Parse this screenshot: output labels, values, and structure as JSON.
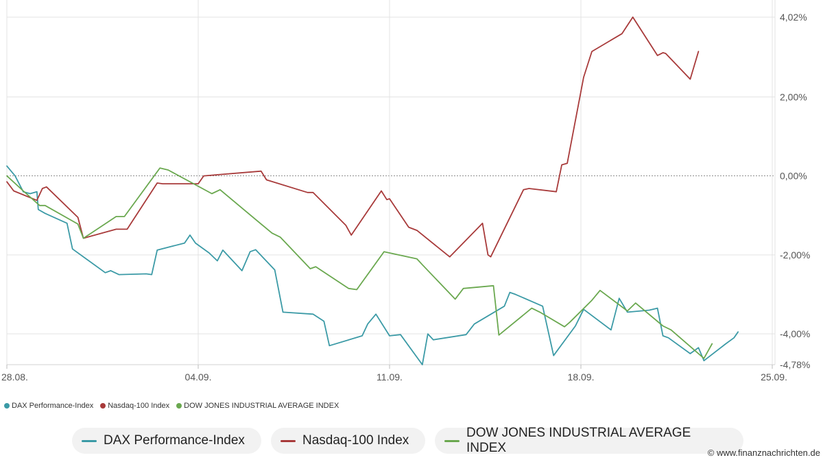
{
  "colors": {
    "dax": "#3b9aa6",
    "nasdaq": "#a83a3a",
    "dow": "#6aa84f",
    "grid": "#e3e3e3",
    "axis_text": "#555555"
  },
  "legend_small": [
    {
      "label": "DAX Performance-Index",
      "color": "#3b9aa6"
    },
    {
      "label": "Nasdaq-100 Index",
      "color": "#a83a3a"
    },
    {
      "label": "DOW JONES INDUSTRIAL AVERAGE INDEX",
      "color": "#6aa84f"
    }
  ],
  "legend_pills": [
    {
      "label": "DAX Performance-Index",
      "color": "#3b9aa6"
    },
    {
      "label": "Nasdaq-100 Index",
      "color": "#a83a3a"
    },
    {
      "label": "DOW JONES INDUSTRIAL AVERAGE INDEX",
      "color": "#6aa84f"
    }
  ],
  "credit": "© www.finanznachrichten.de",
  "chart_data": {
    "type": "line",
    "title": "",
    "xlabel": "",
    "ylabel": "",
    "grid": true,
    "legend_position": "bottom",
    "x_range": [
      0,
      28.1
    ],
    "ylim": [
      -4.78,
      4.02
    ],
    "y_ticks": [
      {
        "value": 4.02,
        "label": "4,02%"
      },
      {
        "value": 2.0,
        "label": "2,00%"
      },
      {
        "value": 0.0,
        "label": "0,00%"
      },
      {
        "value": -2.0,
        "label": "-2,00%"
      },
      {
        "value": -4.0,
        "label": "-4,00%"
      },
      {
        "value": -4.78,
        "label": "-4,78%"
      }
    ],
    "x_ticks": [
      {
        "value": 0,
        "label": "28.08."
      },
      {
        "value": 7,
        "label": "04.09."
      },
      {
        "value": 14,
        "label": "11.09."
      },
      {
        "value": 21,
        "label": "18.09."
      },
      {
        "value": 28,
        "label": "25.09."
      }
    ],
    "series": [
      {
        "name": "DAX Performance-Index",
        "color": "#3b9aa6",
        "points": [
          [
            0,
            0.25
          ],
          [
            0.3,
            0.0
          ],
          [
            0.6,
            -0.4
          ],
          [
            0.85,
            -0.45
          ],
          [
            1.1,
            -0.4
          ],
          [
            1.15,
            -0.85
          ],
          [
            1.4,
            -0.95
          ],
          [
            2.2,
            -1.2
          ],
          [
            2.4,
            -1.85
          ],
          [
            3.6,
            -2.45
          ],
          [
            3.8,
            -2.4
          ],
          [
            4.1,
            -2.5
          ],
          [
            5.1,
            -2.48
          ],
          [
            5.3,
            -2.5
          ],
          [
            5.5,
            -1.88
          ],
          [
            6.5,
            -1.7
          ],
          [
            6.7,
            -1.5
          ],
          [
            6.9,
            -1.7
          ],
          [
            7.4,
            -1.95
          ],
          [
            7.7,
            -2.15
          ],
          [
            7.9,
            -1.88
          ],
          [
            8.6,
            -2.4
          ],
          [
            8.9,
            -1.92
          ],
          [
            9.1,
            -1.87
          ],
          [
            9.8,
            -2.38
          ],
          [
            10.1,
            -3.45
          ],
          [
            11.2,
            -3.5
          ],
          [
            11.6,
            -3.68
          ],
          [
            11.8,
            -4.3
          ],
          [
            13.0,
            -4.05
          ],
          [
            13.2,
            -3.75
          ],
          [
            13.5,
            -3.5
          ],
          [
            14.0,
            -4.05
          ],
          [
            14.4,
            -4.02
          ],
          [
            15.2,
            -4.78
          ],
          [
            15.4,
            -4.0
          ],
          [
            15.6,
            -4.15
          ],
          [
            16.8,
            -4.02
          ],
          [
            17.1,
            -3.75
          ],
          [
            18.2,
            -3.3
          ],
          [
            18.4,
            -2.95
          ],
          [
            18.6,
            -3.0
          ],
          [
            19.6,
            -3.3
          ],
          [
            20.0,
            -4.55
          ],
          [
            20.8,
            -3.8
          ],
          [
            21.1,
            -3.38
          ],
          [
            22.1,
            -3.9
          ],
          [
            22.4,
            -3.1
          ],
          [
            22.7,
            -3.45
          ],
          [
            23.5,
            -3.4
          ],
          [
            23.8,
            -3.35
          ],
          [
            24.0,
            -4.05
          ],
          [
            24.2,
            -4.1
          ],
          [
            25.0,
            -4.5
          ],
          [
            25.3,
            -4.35
          ],
          [
            25.5,
            -4.68
          ],
          [
            26.3,
            -4.25
          ],
          [
            26.6,
            -4.1
          ],
          [
            26.75,
            -3.95
          ]
        ]
      },
      {
        "name": "Nasdaq-100 Index",
        "color": "#a83a3a",
        "points": [
          [
            0,
            -0.15
          ],
          [
            0.25,
            -0.38
          ],
          [
            1.1,
            -0.62
          ],
          [
            1.3,
            -0.32
          ],
          [
            1.45,
            -0.28
          ],
          [
            2.6,
            -1.05
          ],
          [
            2.8,
            -1.58
          ],
          [
            4.0,
            -1.35
          ],
          [
            4.4,
            -1.35
          ],
          [
            5.5,
            -0.18
          ],
          [
            5.7,
            -0.2
          ],
          [
            7.0,
            -0.2
          ],
          [
            7.2,
            0.0
          ],
          [
            9.3,
            0.12
          ],
          [
            9.5,
            -0.1
          ],
          [
            11.0,
            -0.42
          ],
          [
            11.2,
            -0.42
          ],
          [
            12.4,
            -1.25
          ],
          [
            12.6,
            -1.5
          ],
          [
            13.7,
            -0.38
          ],
          [
            13.9,
            -0.6
          ],
          [
            14.0,
            -0.58
          ],
          [
            14.7,
            -1.3
          ],
          [
            15.0,
            -1.38
          ],
          [
            16.2,
            -2.05
          ],
          [
            17.4,
            -1.2
          ],
          [
            17.6,
            -2.0
          ],
          [
            17.7,
            -2.05
          ],
          [
            18.9,
            -0.35
          ],
          [
            19.1,
            -0.32
          ],
          [
            20.1,
            -0.4
          ],
          [
            20.3,
            0.28
          ],
          [
            20.5,
            0.32
          ],
          [
            21.1,
            2.5
          ],
          [
            21.4,
            3.15
          ],
          [
            22.5,
            3.6
          ],
          [
            22.9,
            4.02
          ],
          [
            23.8,
            3.05
          ],
          [
            24.0,
            3.12
          ],
          [
            24.1,
            3.1
          ],
          [
            25.0,
            2.45
          ],
          [
            25.3,
            3.15
          ]
        ]
      },
      {
        "name": "DOW JONES INDUSTRIAL AVERAGE INDEX",
        "color": "#6aa84f",
        "points": [
          [
            0,
            0.0
          ],
          [
            0.6,
            -0.38
          ],
          [
            1.2,
            -0.75
          ],
          [
            1.4,
            -0.75
          ],
          [
            2.6,
            -1.22
          ],
          [
            2.8,
            -1.58
          ],
          [
            4.0,
            -1.03
          ],
          [
            4.3,
            -1.03
          ],
          [
            5.6,
            0.2
          ],
          [
            5.9,
            0.15
          ],
          [
            7.5,
            -0.45
          ],
          [
            7.8,
            -0.35
          ],
          [
            9.7,
            -1.45
          ],
          [
            10.0,
            -1.55
          ],
          [
            11.1,
            -2.35
          ],
          [
            11.3,
            -2.3
          ],
          [
            12.5,
            -2.85
          ],
          [
            12.8,
            -2.88
          ],
          [
            13.8,
            -1.92
          ],
          [
            14.0,
            -1.95
          ],
          [
            15.0,
            -2.1
          ],
          [
            15.2,
            -2.25
          ],
          [
            16.4,
            -3.12
          ],
          [
            16.7,
            -2.85
          ],
          [
            17.8,
            -2.78
          ],
          [
            18.0,
            -4.03
          ],
          [
            19.2,
            -3.35
          ],
          [
            19.5,
            -3.45
          ],
          [
            20.4,
            -3.82
          ],
          [
            20.6,
            -3.7
          ],
          [
            21.4,
            -3.15
          ],
          [
            21.7,
            -2.9
          ],
          [
            22.7,
            -3.42
          ],
          [
            23.0,
            -3.22
          ],
          [
            24.0,
            -3.8
          ],
          [
            24.3,
            -3.9
          ],
          [
            25.5,
            -4.62
          ],
          [
            25.8,
            -4.25
          ]
        ]
      }
    ]
  }
}
